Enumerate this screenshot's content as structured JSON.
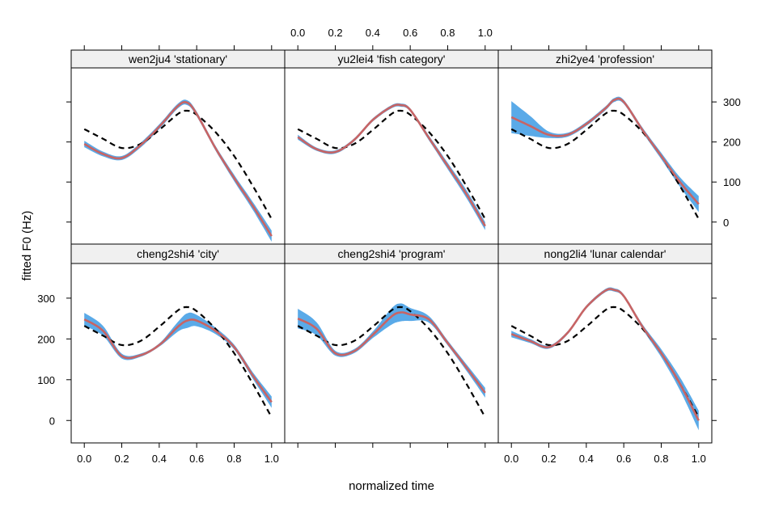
{
  "chart_data": {
    "type": "line",
    "layout": "trellis 3 columns x 2 rows",
    "xlabel": "normalized time",
    "ylabel": "fitted F0 (Hz)",
    "xlim": [
      -0.07,
      1.07
    ],
    "ylim": [
      -55,
      385
    ],
    "x_ticks": [
      0.0,
      0.2,
      0.4,
      0.6,
      0.8,
      1.0
    ],
    "x_tick_labels": [
      "0.0",
      "0.2",
      "0.4",
      "0.6",
      "0.8",
      "1.0"
    ],
    "y_ticks": [
      0,
      100,
      200,
      300
    ],
    "y_tick_labels": [
      "0",
      "100",
      "200",
      "300"
    ],
    "colors": {
      "band": "#5aaae8",
      "fit": "#c86464",
      "reference": "#000000",
      "strip": "#f0f0f0"
    },
    "x": [
      0.0,
      0.1,
      0.2,
      0.3,
      0.4,
      0.5,
      0.55,
      0.6,
      0.7,
      0.8,
      0.9,
      1.0
    ],
    "reference": [
      232,
      208,
      185,
      195,
      230,
      270,
      278,
      268,
      225,
      165,
      90,
      8
    ],
    "panels": [
      {
        "title": "wen2ju4 'stationary'",
        "fit": [
          195,
          170,
          160,
          192,
          238,
          290,
          298,
          270,
          185,
          110,
          40,
          -35
        ],
        "ci": [
          8,
          6,
          5,
          6,
          6,
          6,
          6,
          6,
          6,
          8,
          10,
          14
        ]
      },
      {
        "title": "yu2lei4 'fish category'",
        "fit": [
          212,
          182,
          175,
          205,
          255,
          288,
          292,
          280,
          210,
          140,
          70,
          -10
        ],
        "ci": [
          6,
          4,
          4,
          4,
          4,
          4,
          4,
          4,
          6,
          8,
          10,
          10
        ]
      },
      {
        "title": "zhi2ye4 'profession'",
        "fit": [
          262,
          240,
          218,
          218,
          245,
          283,
          305,
          300,
          230,
          165,
          100,
          45
        ],
        "ci": [
          40,
          25,
          8,
          5,
          5,
          5,
          5,
          5,
          6,
          8,
          12,
          20
        ]
      },
      {
        "title": "cheng2shi4 'city'",
        "fit": [
          248,
          220,
          158,
          160,
          185,
          230,
          245,
          245,
          220,
          180,
          110,
          45
        ],
        "ci": [
          16,
          12,
          6,
          4,
          4,
          12,
          18,
          14,
          8,
          6,
          8,
          14
        ]
      },
      {
        "title": "cheng2shi4 'program'",
        "fit": [
          250,
          225,
          165,
          170,
          210,
          255,
          265,
          260,
          248,
          190,
          130,
          68
        ],
        "ci": [
          24,
          16,
          6,
          5,
          8,
          20,
          22,
          16,
          8,
          6,
          8,
          12
        ]
      },
      {
        "title": "nong2li4 'lunar calendar'",
        "fit": [
          212,
          195,
          180,
          215,
          278,
          318,
          320,
          305,
          230,
          165,
          90,
          0
        ],
        "ci": [
          8,
          5,
          4,
          4,
          4,
          4,
          4,
          4,
          6,
          10,
          16,
          24
        ]
      }
    ]
  }
}
